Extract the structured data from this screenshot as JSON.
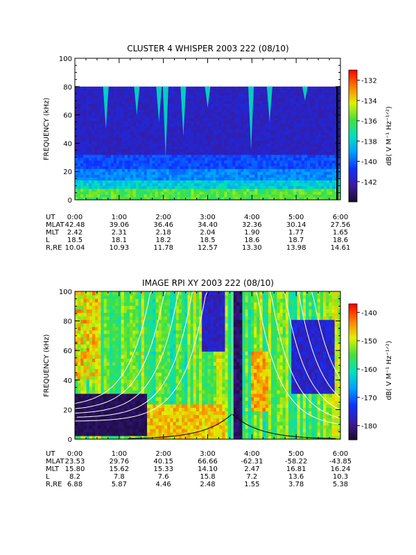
{
  "chart_data": [
    {
      "type": "heatmap",
      "title": "CLUSTER 4 WHISPER 2003 222 (08/10)",
      "ylabel": "FREQUENCY (kHz)",
      "ylim": [
        0,
        100
      ],
      "yticks": [
        "0",
        "20",
        "40",
        "60",
        "80",
        "100"
      ],
      "xlim": [
        "0:00",
        "6:00"
      ],
      "xticks": [
        "0:00",
        "1:00",
        "2:00",
        "3:00",
        "4:00",
        "5:00",
        "6:00"
      ],
      "data_upper_freq_khz": 80,
      "colorbar": {
        "label": "dB( V M⁻¹ Hz⁻¹ᐟ²)",
        "range": [
          -144,
          -131
        ],
        "ticks": [
          "-132",
          "-134",
          "-136",
          "-138",
          "-140",
          "-142"
        ],
        "tick_values": [
          -132,
          -134,
          -136,
          -138,
          -140,
          -142
        ]
      },
      "features": [
        {
          "type": "emission",
          "time_h": 0.7,
          "f_top": 80,
          "f_bot": 50
        },
        {
          "type": "emission",
          "time_h": 1.4,
          "f_top": 80,
          "f_bot": 60
        },
        {
          "type": "emission",
          "time_h": 1.9,
          "f_top": 80,
          "f_bot": 55
        },
        {
          "type": "emission",
          "time_h": 2.05,
          "f_top": 80,
          "f_bot": 30
        },
        {
          "type": "emission",
          "time_h": 2.45,
          "f_top": 80,
          "f_bot": 45
        },
        {
          "type": "emission",
          "time_h": 3.0,
          "f_top": 80,
          "f_bot": 65
        },
        {
          "type": "emission",
          "time_h": 3.98,
          "f_top": 80,
          "f_bot": 35
        },
        {
          "type": "emission",
          "time_h": 4.4,
          "f_top": 80,
          "f_bot": 55
        },
        {
          "type": "emission",
          "time_h": 5.2,
          "f_top": 80,
          "f_bot": 70
        }
      ],
      "ephemeris": {
        "rows": [
          {
            "label": "UT",
            "values": [
              "0:00",
              "1:00",
              "2:00",
              "3:00",
              "4:00",
              "5:00",
              "6:00"
            ]
          },
          {
            "label": "MLAT",
            "values": [
              "42.48",
              "39.06",
              "36.46",
              "34.40",
              "32.36",
              "30.14",
              "27.56"
            ]
          },
          {
            "label": "MLT",
            "values": [
              "2.42",
              "2.31",
              "2.18",
              "2.04",
              "1.90",
              "1.77",
              "1.65"
            ]
          },
          {
            "label": "L",
            "values": [
              "18.5",
              "18.1",
              "18.2",
              "18.5",
              "18.6",
              "18.7",
              "18.6"
            ]
          },
          {
            "label": "R,RE",
            "values": [
              "10.04",
              "10.93",
              "11.78",
              "12.57",
              "13.30",
              "13.98",
              "14.61"
            ]
          }
        ]
      }
    },
    {
      "type": "heatmap",
      "title": "IMAGE RPI XY 2003 222 (08/10)",
      "ylabel": "FREQUENCY (kHz)",
      "ylim": [
        0,
        100
      ],
      "yticks": [
        "0",
        "20",
        "40",
        "60",
        "80",
        "100"
      ],
      "xlim": [
        "0:00",
        "6:00"
      ],
      "xticks": [
        "0:00",
        "1:00",
        "2:00",
        "3:00",
        "4:00",
        "5:00",
        "6:00"
      ],
      "colorbar": {
        "label": "dB( V M⁻¹ Hz⁻¹ᐟ²)",
        "range": [
          -185,
          -137
        ],
        "ticks": [
          "-140",
          "-150",
          "-160",
          "-170",
          "-180"
        ],
        "tick_values": [
          -140,
          -150,
          -160,
          -170,
          -180
        ]
      },
      "overlay_curves": {
        "color": "#ffffff",
        "left_branch_offsets": [
          0.0,
          0.3,
          0.6,
          0.9,
          1.2
        ],
        "right_branch_offsets": [
          0.0,
          0.3,
          0.6,
          0.9,
          1.2
        ],
        "black_curve_peak": {
          "time_h": 3.55,
          "freq_khz": 17
        }
      },
      "ephemeris": {
        "rows": [
          {
            "label": "UT",
            "values": [
              "0:00",
              "1:00",
              "2:00",
              "3:00",
              "4:00",
              "5:00",
              "6:00"
            ]
          },
          {
            "label": "MLAT",
            "values": [
              "23.53",
              "29.76",
              "40.15",
              "66.66",
              "-62.31",
              "-58.22",
              "-43.85"
            ]
          },
          {
            "label": "MLT",
            "values": [
              "15.80",
              "15.62",
              "15.33",
              "14.10",
              "2.47",
              "16.81",
              "16.24"
            ]
          },
          {
            "label": "L",
            "values": [
              "8.2",
              "7.8",
              "7.6",
              "15.8",
              "7.2",
              "13.6",
              "10.3"
            ]
          },
          {
            "label": "R,RE",
            "values": [
              "6.88",
              "5.87",
              "4.46",
              "2.48",
              "1.55",
              "3.78",
              "5.38"
            ]
          }
        ]
      }
    }
  ]
}
